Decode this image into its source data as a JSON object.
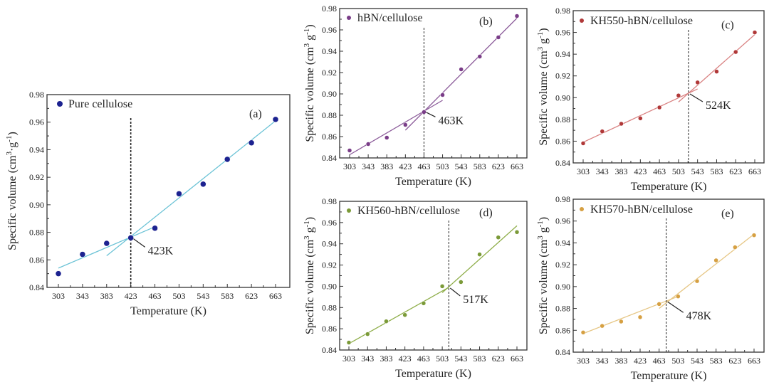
{
  "chart_data": [
    {
      "type": "scatter",
      "panel": "(a)",
      "legend": "Pure cellulose",
      "xlabel": "Temperature (K)",
      "ylabel": "Specific volume (cm3·g-1)",
      "ylabel_parts": [
        "Specific volume (cm",
        "3",
        "·g",
        "-1",
        ")"
      ],
      "x": [
        303,
        343,
        383,
        423,
        463,
        503,
        543,
        583,
        623,
        663
      ],
      "y": [
        0.85,
        0.864,
        0.872,
        0.876,
        0.883,
        0.908,
        0.915,
        0.933,
        0.945,
        0.962
      ],
      "fits": [
        [
          [
            303,
            0.854
          ],
          [
            463,
            0.884
          ]
        ],
        [
          [
            383,
            0.863
          ],
          [
            663,
            0.961
          ]
        ]
      ],
      "tg": 423,
      "tg_label": "423K",
      "ylim": [
        0.84,
        0.98
      ],
      "yticks": [
        "0.84",
        "0.86",
        "0.88",
        "0.90",
        "0.92",
        "0.94",
        "0.96",
        "0.98"
      ],
      "xticks": [
        "303",
        "343",
        "383",
        "423",
        "463",
        "503",
        "543",
        "583",
        "623",
        "663"
      ],
      "marker_color": "#1c2290",
      "line_color": "#6cc3d6"
    },
    {
      "type": "scatter",
      "panel": "(b)",
      "legend": "hBN/cellulose",
      "xlabel": "Temperature (K)",
      "ylabel": "Specific volume (cm3 g-1)",
      "ylabel_parts": [
        "Specific volume (cm",
        "3",
        " g",
        "-1",
        ")"
      ],
      "x": [
        303,
        343,
        383,
        423,
        463,
        503,
        543,
        583,
        623,
        663
      ],
      "y": [
        0.847,
        0.853,
        0.859,
        0.871,
        0.883,
        0.899,
        0.923,
        0.935,
        0.953,
        0.973
      ],
      "fits": [
        [
          [
            303,
            0.843
          ],
          [
            503,
            0.894
          ]
        ],
        [
          [
            423,
            0.866
          ],
          [
            663,
            0.971
          ]
        ]
      ],
      "tg": 463,
      "tg_label": "463K",
      "ylim": [
        0.84,
        0.98
      ],
      "yticks": [
        "0.84",
        "0.86",
        "0.88",
        "0.90",
        "0.92",
        "0.94",
        "0.96",
        "0.98"
      ],
      "xticks": [
        "303",
        "343",
        "383",
        "423",
        "463",
        "503",
        "543",
        "583",
        "623",
        "663"
      ],
      "marker_color": "#7a3d88",
      "line_color": "#8c5c9a"
    },
    {
      "type": "scatter",
      "panel": "(c)",
      "legend": "KH550-hBN/cellulose",
      "xlabel": "Temperature (K)",
      "ylabel": "Specific volume (cm3 g-1)",
      "ylabel_parts": [
        "Specific volume (cm",
        "3",
        " g",
        "-1",
        ")"
      ],
      "x": [
        303,
        343,
        383,
        423,
        463,
        503,
        543,
        583,
        623,
        663
      ],
      "y": [
        0.858,
        0.869,
        0.876,
        0.881,
        0.891,
        0.902,
        0.914,
        0.924,
        0.942,
        0.96
      ],
      "fits": [
        [
          [
            303,
            0.859
          ],
          [
            543,
            0.908
          ]
        ],
        [
          [
            503,
            0.896
          ],
          [
            663,
            0.958
          ]
        ]
      ],
      "tg": 524,
      "tg_label": "524K",
      "ylim": [
        0.84,
        0.98
      ],
      "yticks": [
        "0.84",
        "0.86",
        "0.88",
        "0.90",
        "0.92",
        "0.94",
        "0.96",
        "0.98"
      ],
      "xticks": [
        "303",
        "343",
        "383",
        "423",
        "463",
        "503",
        "543",
        "583",
        "623",
        "663"
      ],
      "marker_color": "#b03838",
      "line_color": "#d98282"
    },
    {
      "type": "scatter",
      "panel": "(d)",
      "legend": "KH560-hBN/cellulose",
      "xlabel": "Temperature (K)",
      "ylabel": "Specific volume (cm3 g-1)",
      "ylabel_parts": [
        "Specific volume (cm",
        "3",
        " g",
        "-1",
        ")"
      ],
      "x": [
        303,
        343,
        383,
        423,
        463,
        503,
        543,
        583,
        623,
        663
      ],
      "y": [
        0.847,
        0.855,
        0.867,
        0.873,
        0.884,
        0.9,
        0.904,
        0.93,
        0.946,
        0.951
      ],
      "fits": [
        [
          [
            303,
            0.846
          ],
          [
            517,
            0.899
          ]
        ],
        [
          [
            503,
            0.894
          ],
          [
            663,
            0.957
          ]
        ]
      ],
      "tg": 517,
      "tg_label": "517K",
      "ylim": [
        0.84,
        0.98
      ],
      "yticks": [
        "0.84",
        "0.86",
        "0.88",
        "0.90",
        "0.92",
        "0.94",
        "0.96",
        "0.98"
      ],
      "xticks": [
        "303",
        "343",
        "383",
        "423",
        "463",
        "503",
        "543",
        "583",
        "623",
        "663"
      ],
      "marker_color": "#7b9a38",
      "line_color": "#8fae4a"
    },
    {
      "type": "scatter",
      "panel": "(e)",
      "legend": "KH570-hBN/cellulose",
      "xlabel": "Temperature (K)",
      "ylabel": "Specific volume (cm3 g-1)",
      "ylabel_parts": [
        "Specific volume (cm",
        "3",
        " g",
        "-1",
        ")"
      ],
      "x": [
        303,
        343,
        383,
        423,
        463,
        503,
        543,
        583,
        623,
        663
      ],
      "y": [
        0.858,
        0.864,
        0.868,
        0.872,
        0.884,
        0.891,
        0.905,
        0.924,
        0.936,
        0.947
      ],
      "fits": [
        [
          [
            303,
            0.857
          ],
          [
            503,
            0.891
          ]
        ],
        [
          [
            463,
            0.88
          ],
          [
            663,
            0.948
          ]
        ]
      ],
      "tg": 478,
      "tg_label": "478K",
      "ylim": [
        0.84,
        0.98
      ],
      "yticks": [
        "0.84",
        "0.86",
        "0.88",
        "0.90",
        "0.92",
        "0.94",
        "0.96",
        "0.98"
      ],
      "xticks": [
        "303",
        "343",
        "383",
        "423",
        "463",
        "503",
        "543",
        "583",
        "623",
        "663"
      ],
      "marker_color": "#d6a042",
      "line_color": "#e6c684"
    }
  ]
}
